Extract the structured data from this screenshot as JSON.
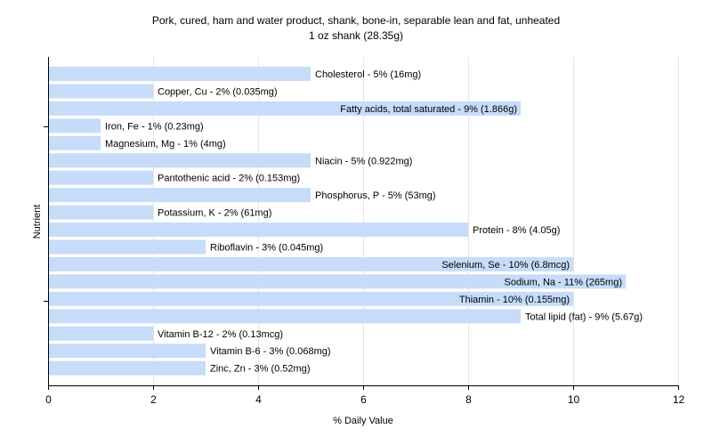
{
  "chart_data": {
    "type": "bar",
    "orientation": "horizontal",
    "title": "Pork, cured, ham and water product, shank, bone-in, separable lean and fat, unheated",
    "subtitle": "1 oz shank (28.35g)",
    "xlabel": "% Daily Value",
    "ylabel": "Nutrient",
    "xlim": [
      0,
      12
    ],
    "xticks": [
      0,
      2,
      4,
      6,
      8,
      10,
      12
    ],
    "grid": true,
    "bar_color": "#c6dcf9",
    "categories": [
      "Cholesterol",
      "Copper, Cu",
      "Fatty acids, total saturated",
      "Iron, Fe",
      "Magnesium, Mg",
      "Niacin",
      "Pantothenic acid",
      "Phosphorus, P",
      "Potassium, K",
      "Protein",
      "Riboflavin",
      "Selenium, Se",
      "Sodium, Na",
      "Thiamin",
      "Total lipid (fat)",
      "Vitamin B-12",
      "Vitamin B-6",
      "Zinc, Zn"
    ],
    "values": [
      5,
      2,
      9,
      1,
      1,
      5,
      2,
      5,
      2,
      8,
      3,
      10,
      11,
      10,
      9,
      2,
      3,
      3
    ],
    "labels": [
      "Cholesterol - 5% (16mg)",
      "Copper, Cu - 2% (0.035mg)",
      "Fatty acids, total saturated - 9% (1.866g)",
      "Iron, Fe - 1% (0.23mg)",
      "Magnesium, Mg - 1% (4mg)",
      "Niacin - 5% (0.922mg)",
      "Pantothenic acid - 2% (0.153mg)",
      "Phosphorus, P - 5% (53mg)",
      "Potassium, K - 2% (61mg)",
      "Protein - 8% (4.05g)",
      "Riboflavin - 3% (0.045mg)",
      "Selenium, Se - 10% (6.8mcg)",
      "Sodium, Na - 11% (265mg)",
      "Thiamin - 10% (0.155mg)",
      "Total lipid (fat) - 9% (5.67g)",
      "Vitamin B-12 - 2% (0.13mcg)",
      "Vitamin B-6 - 3% (0.068mg)",
      "Zinc, Zn - 3% (0.52mg)"
    ]
  }
}
